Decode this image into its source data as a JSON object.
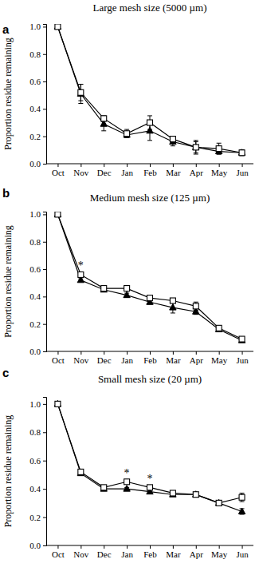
{
  "chart_data": [
    {
      "type": "line",
      "panel": "a",
      "title": "Large mesh size (5000 µm)",
      "y_label": "Proportion residue remaining",
      "categories": [
        "Oct",
        "Nov",
        "Dec",
        "Jan",
        "Feb",
        "Mar",
        "Apr",
        "May",
        "Jun"
      ],
      "ylim": [
        0,
        1.02
      ],
      "yticks": [
        {
          "value": 0,
          "label": "0.0"
        },
        {
          "value": 0.2,
          "label": "0.2"
        },
        {
          "value": 0.4,
          "label": "0.4"
        },
        {
          "value": 0.6,
          "label": "0.6"
        },
        {
          "value": 0.8,
          "label": "0.8"
        },
        {
          "value": 1,
          "label": "1.0"
        }
      ],
      "series": [
        {
          "color": "#000000",
          "marker": "triangle",
          "values": [
            1.0,
            0.51,
            0.29,
            0.21,
            0.24,
            0.16,
            0.12,
            0.09,
            0.08
          ],
          "errors": [
            0,
            0.07,
            0.05,
            0.02,
            0.07,
            0.03,
            0.04,
            0.02,
            0.02
          ]
        },
        {
          "color": "#000000",
          "marker": "square",
          "values": [
            1.0,
            0.52,
            0.33,
            0.22,
            0.3,
            0.18,
            0.12,
            0.11,
            0.08
          ],
          "errors": [
            0,
            0.06,
            0.02,
            0.03,
            0.05,
            0.02,
            0.05,
            0.04,
            0.02
          ]
        }
      ],
      "annotations": []
    },
    {
      "type": "line",
      "panel": "b",
      "title": "Medium mesh size (125 µm)",
      "y_label": "Proportion residue remaining",
      "categories": [
        "Oct",
        "Nov",
        "Dec",
        "Jan",
        "Feb",
        "Mar",
        "Apr",
        "May",
        "Jun"
      ],
      "ylim": [
        0,
        1.02
      ],
      "yticks": [
        {
          "value": 0,
          "label": "0.0"
        },
        {
          "value": 0.2,
          "label": "0.2"
        },
        {
          "value": 0.4,
          "label": "0.4"
        },
        {
          "value": 0.6,
          "label": "0.6"
        },
        {
          "value": 0.8,
          "label": "0.8"
        },
        {
          "value": 1,
          "label": "1.0"
        }
      ],
      "series": [
        {
          "color": "#000000",
          "marker": "triangle",
          "values": [
            1.0,
            0.52,
            0.45,
            0.41,
            0.36,
            0.32,
            0.29,
            0.16,
            0.08
          ],
          "errors": [
            0,
            0.01,
            0.01,
            0.015,
            0.015,
            0.04,
            0.02,
            0.01,
            0.01
          ]
        },
        {
          "color": "#000000",
          "marker": "square",
          "values": [
            1.0,
            0.56,
            0.46,
            0.46,
            0.39,
            0.37,
            0.33,
            0.17,
            0.09
          ],
          "errors": [
            0,
            0.01,
            0.01,
            0.02,
            0.01,
            0.01,
            0.03,
            0.01,
            0.01
          ]
        }
      ],
      "annotations": [
        {
          "text": "*",
          "x": "Nov"
        }
      ]
    },
    {
      "type": "line",
      "panel": "c",
      "title": "Small mesh size (20 µm)",
      "y_label": "Proportion residue remaining",
      "categories": [
        "Oct",
        "Nov",
        "Dec",
        "Jan",
        "Feb",
        "Mar",
        "Apr",
        "May",
        "Jun"
      ],
      "ylim": [
        0,
        1.05
      ],
      "yticks": [
        {
          "value": 0,
          "label": "0.0"
        },
        {
          "value": 0.2,
          "label": "0.2"
        },
        {
          "value": 0.4,
          "label": "0.4"
        },
        {
          "value": 0.6,
          "label": "0.6"
        },
        {
          "value": 0.8,
          "label": "0.8"
        },
        {
          "value": 1,
          "label": "1.0"
        }
      ],
      "series": [
        {
          "color": "#000000",
          "marker": "triangle",
          "values": [
            1.0,
            0.51,
            0.4,
            0.4,
            0.38,
            0.36,
            0.36,
            0.3,
            0.24
          ],
          "errors": [
            0,
            0.01,
            0.01,
            0.01,
            0.01,
            0.01,
            0.01,
            0.01,
            0.02
          ]
        },
        {
          "color": "#000000",
          "marker": "square",
          "values": [
            1.0,
            0.52,
            0.41,
            0.45,
            0.41,
            0.37,
            0.36,
            0.3,
            0.34
          ],
          "errors": [
            0,
            0.01,
            0.01,
            0.01,
            0.01,
            0.01,
            0.01,
            0.01,
            0.03
          ]
        }
      ],
      "annotations": [
        {
          "text": "*",
          "x": "Jan"
        },
        {
          "text": "*",
          "x": "Feb"
        }
      ]
    }
  ]
}
